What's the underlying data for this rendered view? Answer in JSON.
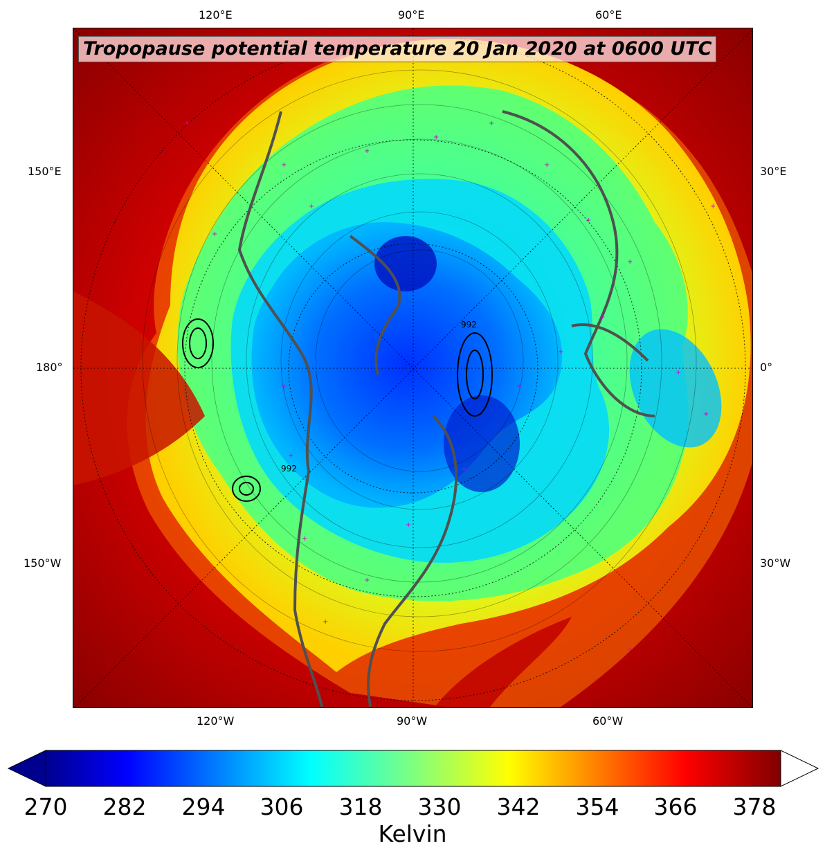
{
  "title": "Tropopause potential temperature 20 Jan 2020 at 0600 UTC",
  "labels": {
    "top": [
      "120°E",
      "90°E",
      "60°E"
    ],
    "bottom": [
      "120°W",
      "90°W",
      "60°W"
    ],
    "left": [
      "150°E",
      "180°",
      "150°W"
    ],
    "right": [
      "30°E",
      "0°",
      "30°W"
    ]
  },
  "colorbar": {
    "ticks": [
      "270",
      "282",
      "294",
      "306",
      "318",
      "330",
      "342",
      "354",
      "366",
      "378"
    ],
    "label": "Kelvin",
    "min": 270,
    "max": 382,
    "extend": "both",
    "colormap": "jet"
  },
  "contour_labels": [
    "992",
    "992"
  ],
  "colors": {
    "ocean_warm": "#8b0000",
    "coast": "#505050",
    "markers": "#cc00cc"
  }
}
